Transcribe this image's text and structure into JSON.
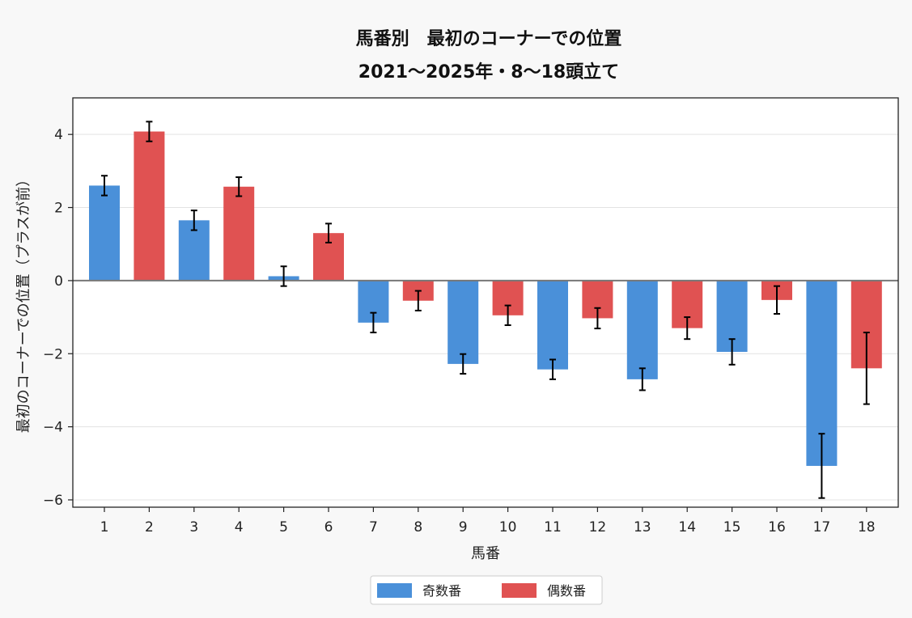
{
  "chart_data": {
    "type": "bar",
    "title": [
      "馬番別　最初のコーナーでの位置",
      "2021〜2025年・8〜18頭立て"
    ],
    "xlabel": "馬番",
    "ylabel": "最初のコーナーでの位置（プラスが前）",
    "categories": [
      "1",
      "2",
      "3",
      "4",
      "5",
      "6",
      "7",
      "8",
      "9",
      "10",
      "11",
      "12",
      "13",
      "14",
      "15",
      "16",
      "17",
      "18"
    ],
    "values": [
      2.6,
      4.08,
      1.65,
      2.57,
      0.12,
      1.3,
      -1.15,
      -0.55,
      -2.28,
      -0.95,
      -2.43,
      -1.03,
      -2.7,
      -1.3,
      -1.95,
      -0.53,
      -5.07,
      -2.4
    ],
    "errors": [
      0.27,
      0.27,
      0.27,
      0.26,
      0.27,
      0.26,
      0.27,
      0.27,
      0.27,
      0.27,
      0.27,
      0.28,
      0.3,
      0.3,
      0.35,
      0.38,
      0.88,
      0.98
    ],
    "series_colors": [
      "#4a90d9",
      "#e05252",
      "#4a90d9",
      "#e05252",
      "#4a90d9",
      "#e05252",
      "#4a90d9",
      "#e05252",
      "#4a90d9",
      "#e05252",
      "#4a90d9",
      "#e05252",
      "#4a90d9",
      "#e05252",
      "#4a90d9",
      "#e05252",
      "#4a90d9",
      "#e05252"
    ],
    "ylim": [
      -6.2,
      5.0
    ],
    "yticks": [
      -6,
      -4,
      -2,
      0,
      2,
      4
    ],
    "ytick_labels": [
      "−6",
      "−4",
      "−2",
      "0",
      "2",
      "4"
    ],
    "grid": "horizontal",
    "legend": {
      "placement": "bottom-center",
      "entries": [
        {
          "label": "奇数番",
          "color": "#4a90d9"
        },
        {
          "label": "偶数番",
          "color": "#e05252"
        }
      ]
    }
  }
}
